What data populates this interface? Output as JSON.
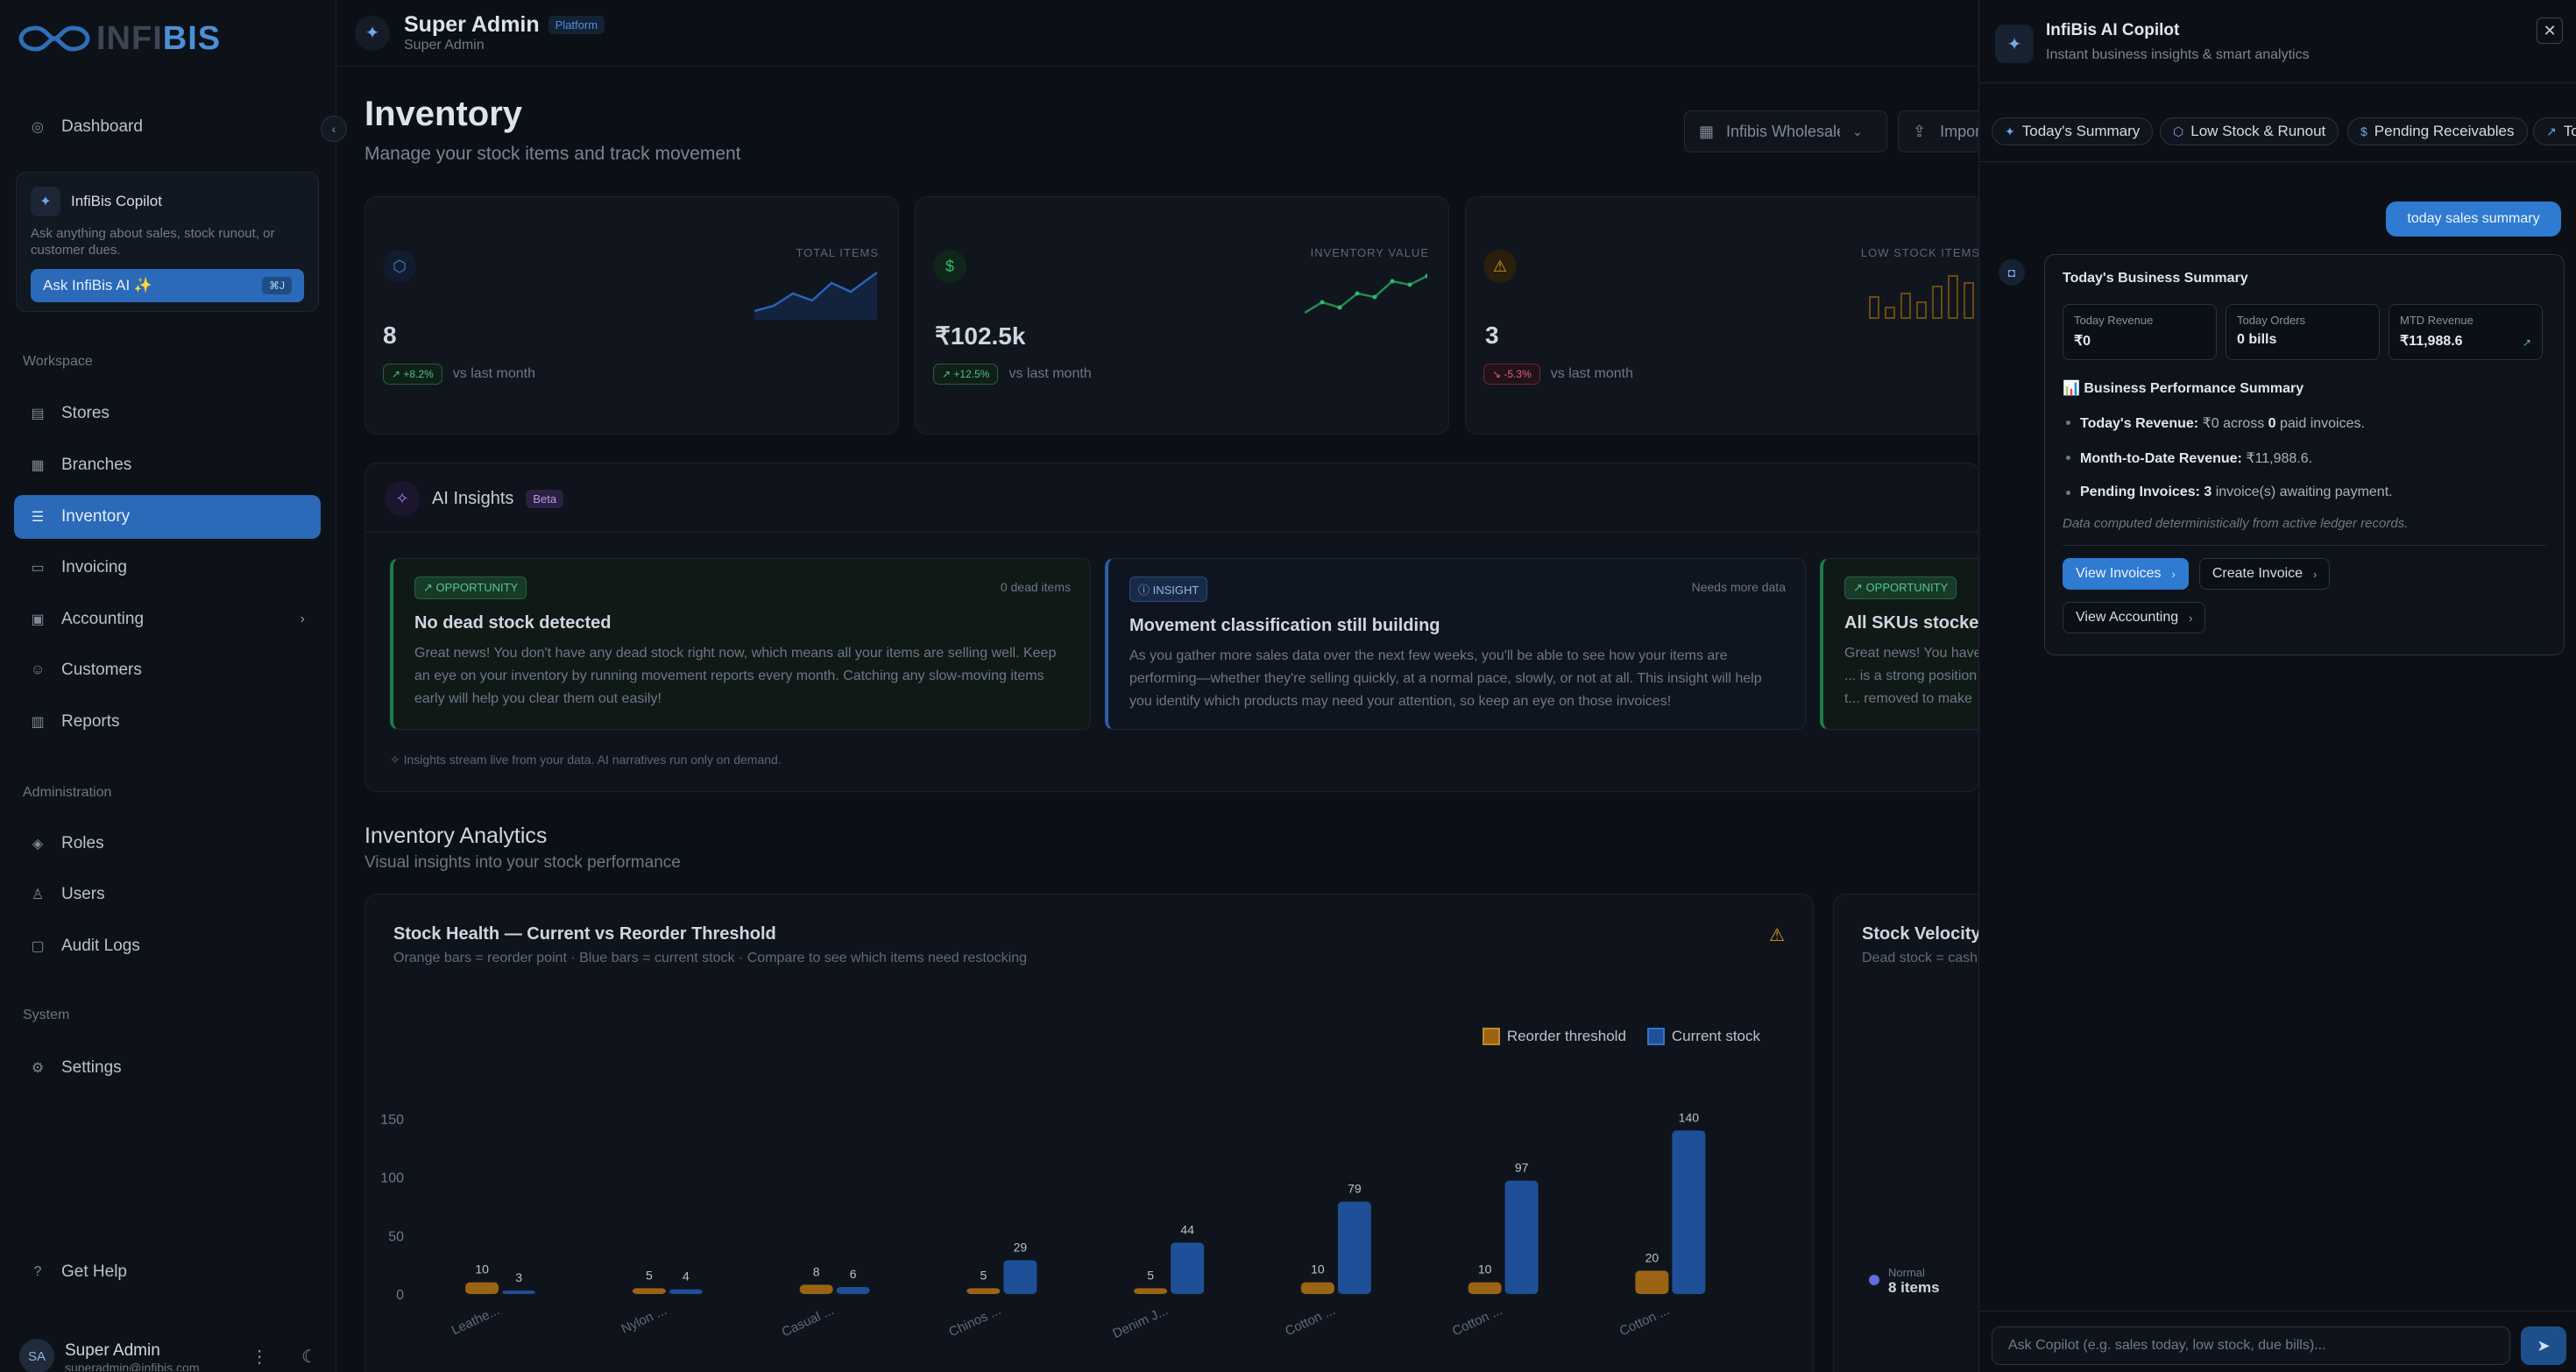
{
  "brand": {
    "logo_text_a": "INFI",
    "logo_text_b": "BIS"
  },
  "sidebar": {
    "dashboard": "Dashboard",
    "copilot_card": {
      "title": "InfiBis Copilot",
      "desc": "Ask anything about sales, stock runout, or customer dues.",
      "button": "Ask InfiBis AI ✨",
      "shortcut": "⌘J"
    },
    "workspace_label": "Workspace",
    "workspace_items": [
      "Stores",
      "Branches",
      "Inventory",
      "Invoicing",
      "Accounting",
      "Customers",
      "Reports"
    ],
    "admin_label": "Administration",
    "admin_items": [
      "Roles",
      "Users",
      "Audit Logs"
    ],
    "system_label": "System",
    "system_items": [
      "Settings"
    ],
    "help": "Get Help",
    "user": {
      "initials": "SA",
      "name": "Super Admin",
      "email": "superadmin@infibis.com"
    }
  },
  "header": {
    "title": "Super Admin",
    "subtitle": "Super Admin",
    "badge": "Platform"
  },
  "page": {
    "title": "Inventory",
    "subtitle": "Manage your stock items and track movement",
    "store": "Infibis Wholesale",
    "import": "Import"
  },
  "kpis": [
    {
      "label": "TOTAL ITEMS",
      "value": "8",
      "delta": "+8.2%",
      "delta_dir": "up",
      "caption": "vs last month",
      "color": "#2e6fd0"
    },
    {
      "label": "INVENTORY VALUE",
      "value": "₹102.5k",
      "delta": "+12.5%",
      "delta_dir": "up",
      "caption": "vs last month",
      "color": "#2fb86a"
    },
    {
      "label": "LOW STOCK ITEMS",
      "value": "3",
      "delta": "-5.3%",
      "delta_dir": "down",
      "caption": "vs last month",
      "color": "#d89b1e"
    }
  ],
  "insights": {
    "title": "AI Insights",
    "badge": "Beta",
    "footer": "Insights stream live from your data. AI narratives run only on demand.",
    "cards": [
      {
        "tag": "OPPORTUNITY",
        "meta": "0 dead items",
        "title": "No dead stock detected",
        "body": "Great news! You don't have any dead stock right now, which means all your items are selling well. Keep an eye on your inventory by running movement reports every month. Catching any slow-moving items early will help you clear them out easily!"
      },
      {
        "tag": "INSIGHT",
        "meta": "Needs more data",
        "title": "Movement classification still building",
        "body": "As you gather more sales data over the next few weeks, you'll be able to see how your items are performing—whether they're selling quickly, at a normal pace, slowly, or not at all. This insight will help you identify which products may need your attention, so keep an eye on those invoices!"
      },
      {
        "tag": "OPPORTUNITY",
        "meta": "",
        "title": "All SKUs stocked",
        "body": "Great news! You have ... is a strong position t... removed to make roo..."
      }
    ]
  },
  "analytics": {
    "title": "Inventory Analytics",
    "subtitle": "Visual insights into your stock performance"
  },
  "chart_data": {
    "type": "bar",
    "title": "Stock Health — Current vs Reorder Threshold",
    "subtitle": "Orange bars = reorder point · Blue bars = current stock · Compare to see which items need restocking",
    "categories": [
      "Leathe...",
      "Nylon ...",
      "Casual ...",
      "Chinos ...",
      "Denim J...",
      "Cotton ...",
      "Cotton ...",
      "Cotton ..."
    ],
    "series": [
      {
        "name": "Reorder threshold",
        "values": [
          10,
          5,
          8,
          5,
          5,
          10,
          10,
          20
        ],
        "color": "#9a6414"
      },
      {
        "name": "Current stock",
        "values": [
          3,
          4,
          6,
          29,
          44,
          79,
          97,
          140
        ],
        "color": "#1f4f96"
      }
    ],
    "ylim": [
      0,
      150
    ],
    "yticks": [
      0,
      50,
      100,
      150
    ],
    "grid": false,
    "legend": "top-right"
  },
  "velocity": {
    "title": "Stock Velocity",
    "subtitle": "Dead stock = cash...",
    "legend_label": "Normal",
    "legend_value": "8 items"
  },
  "copilot": {
    "title": "InfiBis AI Copilot",
    "subtitle": "Instant business insights & smart analytics",
    "chips": [
      "Today's Summary",
      "Low Stock & Runout",
      "Pending Receivables",
      "To"
    ],
    "user_message": "today sales summary",
    "response": {
      "title": "Today's Business Summary",
      "metrics": [
        {
          "label": "Today Revenue",
          "value": "₹0"
        },
        {
          "label": "Today Orders",
          "value": "0 bills"
        },
        {
          "label": "MTD Revenue",
          "value": "₹11,988.6"
        }
      ],
      "section": "📊 Business Performance Summary",
      "bullets": [
        {
          "strong": "Today's Revenue:",
          "text": " ₹0 across ",
          "strong2": "0",
          "text2": " paid invoices."
        },
        {
          "strong": "Month-to-Date Revenue:",
          "text": " ₹11,988.6.",
          "strong2": "",
          "text2": ""
        },
        {
          "strong": "Pending Invoices:",
          "text": " ",
          "strong2": "3",
          "text2": " invoice(s) awaiting payment."
        }
      ],
      "note": "Data computed deterministically from active ledger records.",
      "actions": [
        "View Invoices",
        "Create Invoice",
        "View Accounting"
      ]
    },
    "input_placeholder": "Ask Copilot (e.g. sales today, low stock, due bills)..."
  }
}
